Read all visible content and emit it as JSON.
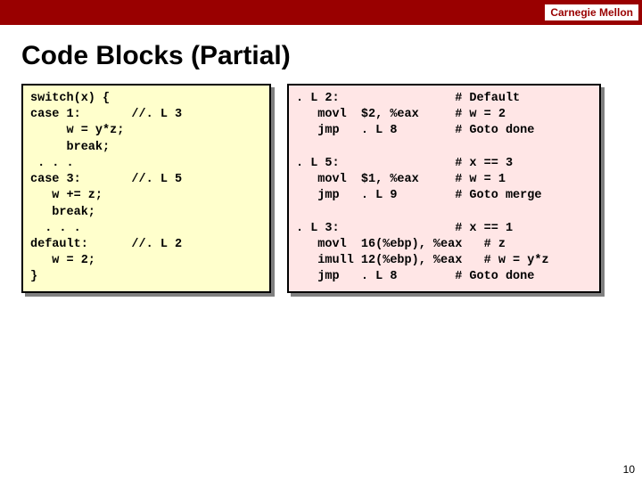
{
  "header": {
    "org": "Carnegie Mellon"
  },
  "title": "Code Blocks (Partial)",
  "colors": {
    "header_bg": "#990000",
    "left_box_bg": "#ffffcc",
    "right_box_bg": "#ffe6e6",
    "shadow": "#808080",
    "border": "#000000"
  },
  "code_left": "switch(x) {\ncase 1:       //. L 3\n     w = y*z;\n     break;\n . . .\ncase 3:       //. L 5\n   w += z;\n   break;\n  . . .\ndefault:      //. L 2\n   w = 2;\n}",
  "code_right": ". L 2:                # Default\n   movl  $2, %eax     # w = 2\n   jmp   . L 8        # Goto done\n\n. L 5:                # x == 3\n   movl  $1, %eax     # w = 1\n   jmp   . L 9        # Goto merge\n\n. L 3:                # x == 1\n   movl  16(%ebp), %eax   # z\n   imull 12(%ebp), %eax   # w = y*z\n   jmp   . L 8        # Goto done",
  "page_number": "10"
}
